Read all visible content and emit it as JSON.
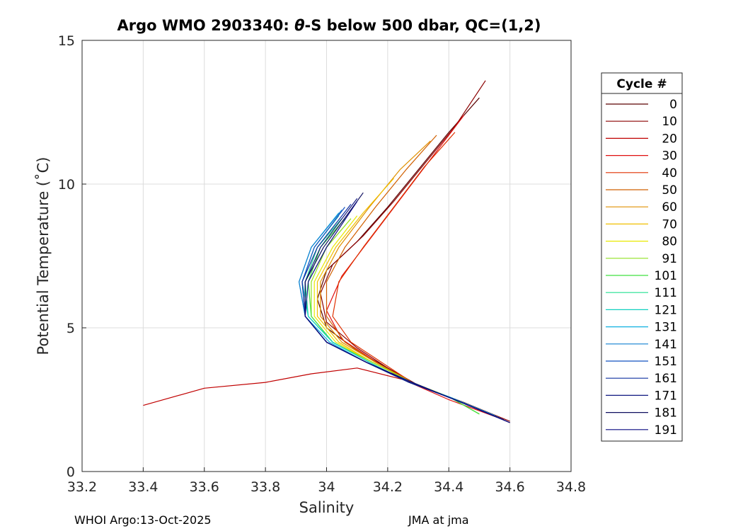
{
  "chart_data": {
    "type": "line",
    "title_prefix": "Argo WMO 2903340: ",
    "title_symbol": "θ",
    "title_suffix": "-S below 500 dbar,  QC=(1,2)",
    "xlabel": "Salinity",
    "ylabel": "Potential Temperature (˚C)",
    "xlim": [
      33.2,
      34.8
    ],
    "ylim": [
      0,
      15
    ],
    "xticks": [
      "33.2",
      "33.4",
      "33.6",
      "33.8",
      "34",
      "34.2",
      "34.4",
      "34.6",
      "34.8"
    ],
    "yticks": [
      "0",
      "5",
      "10",
      "15"
    ],
    "grid": true,
    "legend": {
      "title": "Cycle #",
      "position": "right",
      "entries": [
        "0",
        "10",
        "20",
        "30",
        "40",
        "50",
        "60",
        "70",
        "80",
        "91",
        "101",
        "111",
        "121",
        "131",
        "141",
        "151",
        "161",
        "171",
        "181",
        "191"
      ],
      "colors": [
        "#5a0000",
        "#8b0000",
        "#c00000",
        "#e01010",
        "#e03000",
        "#d06000",
        "#e09000",
        "#f0c000",
        "#e8e800",
        "#90e020",
        "#40e040",
        "#20e090",
        "#10d0c0",
        "#10b0e0",
        "#1080d0",
        "#1050c0",
        "#1030a0",
        "#101880",
        "#101060",
        "#0a0a80"
      ]
    },
    "series": [
      {
        "name": "0",
        "x": [
          34.6,
          34.45,
          34.3,
          34.2,
          34.1,
          34.0,
          33.97,
          34.0,
          34.1,
          34.2,
          34.3,
          34.4,
          34.5
        ],
        "y": [
          1.7,
          2.4,
          3.0,
          3.6,
          4.2,
          5.0,
          6.0,
          7.0,
          8.0,
          9.2,
          10.5,
          11.8,
          13.0
        ]
      },
      {
        "name": "10",
        "x": [
          34.6,
          34.45,
          34.3,
          34.2,
          34.1,
          34.0,
          33.98,
          34.02,
          34.12,
          34.22,
          34.32,
          34.42,
          34.52
        ],
        "y": [
          1.75,
          2.4,
          3.0,
          3.6,
          4.3,
          5.2,
          6.2,
          7.2,
          8.2,
          9.4,
          10.7,
          12.0,
          13.6
        ]
      },
      {
        "name": "20",
        "x": [
          34.58,
          34.4,
          34.25,
          34.1,
          33.95,
          33.8,
          33.6,
          33.4
        ],
        "y": [
          1.8,
          2.6,
          3.2,
          3.6,
          3.4,
          3.1,
          2.9,
          2.3
        ]
      },
      {
        "name": "30",
        "x": [
          34.58,
          34.4,
          34.25,
          34.15,
          34.05,
          34.0,
          34.05,
          34.15,
          34.25,
          34.35,
          34.45
        ],
        "y": [
          1.8,
          2.5,
          3.2,
          3.9,
          4.6,
          5.6,
          6.8,
          8.2,
          9.6,
          11.0,
          12.4
        ]
      },
      {
        "name": "40",
        "x": [
          34.58,
          34.42,
          34.28,
          34.18,
          34.08,
          34.02,
          34.04,
          34.12,
          34.22,
          34.32,
          34.42
        ],
        "y": [
          1.8,
          2.5,
          3.1,
          3.8,
          4.5,
          5.4,
          6.6,
          7.8,
          9.2,
          10.6,
          11.8
        ]
      },
      {
        "name": "50",
        "x": [
          34.57,
          34.42,
          34.28,
          34.16,
          34.06,
          34.0,
          34.0,
          34.06,
          34.16,
          34.26,
          34.36
        ],
        "y": [
          1.85,
          2.5,
          3.1,
          3.8,
          4.5,
          5.4,
          6.6,
          7.8,
          9.2,
          10.5,
          11.7
        ]
      },
      {
        "name": "60",
        "x": [
          34.57,
          34.42,
          34.28,
          34.16,
          34.05,
          33.98,
          33.98,
          34.04,
          34.14,
          34.24,
          34.34
        ],
        "y": [
          1.85,
          2.5,
          3.1,
          3.8,
          4.5,
          5.4,
          6.6,
          7.8,
          9.2,
          10.5,
          11.5
        ]
      },
      {
        "name": "70",
        "x": [
          34.56,
          34.42,
          34.28,
          34.15,
          34.04,
          33.97,
          33.97,
          34.03,
          34.12,
          34.22
        ],
        "y": [
          1.9,
          2.5,
          3.1,
          3.8,
          4.5,
          5.4,
          6.6,
          7.8,
          9.0,
          10.2
        ]
      },
      {
        "name": "80",
        "x": [
          34.56,
          34.42,
          34.28,
          34.15,
          34.03,
          33.96,
          33.96,
          34.02,
          34.1
        ],
        "y": [
          1.9,
          2.5,
          3.1,
          3.8,
          4.5,
          5.4,
          6.6,
          7.8,
          8.9
        ]
      },
      {
        "name": "91",
        "x": [
          34.5,
          34.4,
          34.28,
          34.15,
          34.02,
          33.95,
          33.95,
          34.0,
          34.08
        ],
        "y": [
          2.0,
          2.6,
          3.1,
          3.8,
          4.5,
          5.4,
          6.6,
          7.8,
          8.8
        ]
      },
      {
        "name": "101",
        "x": [
          34.5,
          34.4,
          34.27,
          34.14,
          34.02,
          33.95,
          33.94,
          33.98,
          34.06
        ],
        "y": [
          2.0,
          2.6,
          3.1,
          3.8,
          4.5,
          5.4,
          6.6,
          7.8,
          8.8
        ]
      },
      {
        "name": "111",
        "x": [
          34.55,
          34.4,
          34.27,
          34.14,
          34.02,
          33.94,
          33.93,
          33.97,
          34.05
        ],
        "y": [
          1.95,
          2.6,
          3.1,
          3.8,
          4.5,
          5.4,
          6.6,
          7.8,
          8.8
        ]
      },
      {
        "name": "121",
        "x": [
          34.55,
          34.4,
          34.27,
          34.14,
          34.02,
          33.94,
          33.92,
          33.96,
          34.04
        ],
        "y": [
          1.95,
          2.6,
          3.1,
          3.8,
          4.5,
          5.4,
          6.6,
          7.8,
          8.9
        ]
      },
      {
        "name": "131",
        "x": [
          34.55,
          34.4,
          34.27,
          34.13,
          34.01,
          33.93,
          33.91,
          33.95,
          34.04
        ],
        "y": [
          1.95,
          2.6,
          3.1,
          3.8,
          4.5,
          5.4,
          6.6,
          7.8,
          9.0
        ]
      },
      {
        "name": "141",
        "x": [
          34.56,
          34.41,
          34.27,
          34.13,
          34.0,
          33.93,
          33.91,
          33.95,
          34.05
        ],
        "y": [
          1.9,
          2.55,
          3.1,
          3.8,
          4.5,
          5.4,
          6.6,
          7.8,
          9.1
        ]
      },
      {
        "name": "151",
        "x": [
          34.57,
          34.41,
          34.27,
          34.13,
          34.0,
          33.93,
          33.92,
          33.96,
          34.06
        ],
        "y": [
          1.85,
          2.55,
          3.1,
          3.8,
          4.5,
          5.4,
          6.6,
          7.8,
          9.2
        ]
      },
      {
        "name": "161",
        "x": [
          34.58,
          34.42,
          34.27,
          34.13,
          34.0,
          33.93,
          33.92,
          33.97,
          34.08
        ],
        "y": [
          1.8,
          2.5,
          3.1,
          3.8,
          4.5,
          5.4,
          6.6,
          7.8,
          9.3
        ]
      },
      {
        "name": "171",
        "x": [
          34.59,
          34.42,
          34.27,
          34.13,
          34.0,
          33.93,
          33.93,
          33.98,
          34.1
        ],
        "y": [
          1.75,
          2.5,
          3.1,
          3.8,
          4.5,
          5.4,
          6.6,
          7.8,
          9.5
        ]
      },
      {
        "name": "181",
        "x": [
          34.6,
          34.43,
          34.28,
          34.13,
          34.0,
          33.93,
          33.93,
          33.99,
          34.12
        ],
        "y": [
          1.7,
          2.45,
          3.1,
          3.8,
          4.5,
          5.4,
          6.6,
          7.8,
          9.7
        ]
      },
      {
        "name": "191",
        "x": [
          34.6,
          34.43,
          34.28,
          34.13,
          34.0,
          33.93,
          33.94,
          34.0,
          34.1
        ],
        "y": [
          1.7,
          2.45,
          3.1,
          3.8,
          4.5,
          5.4,
          6.6,
          7.8,
          9.4
        ]
      }
    ]
  },
  "footer": {
    "left": "WHOI Argo:13-Oct-2025",
    "right": "JMA at jma"
  }
}
